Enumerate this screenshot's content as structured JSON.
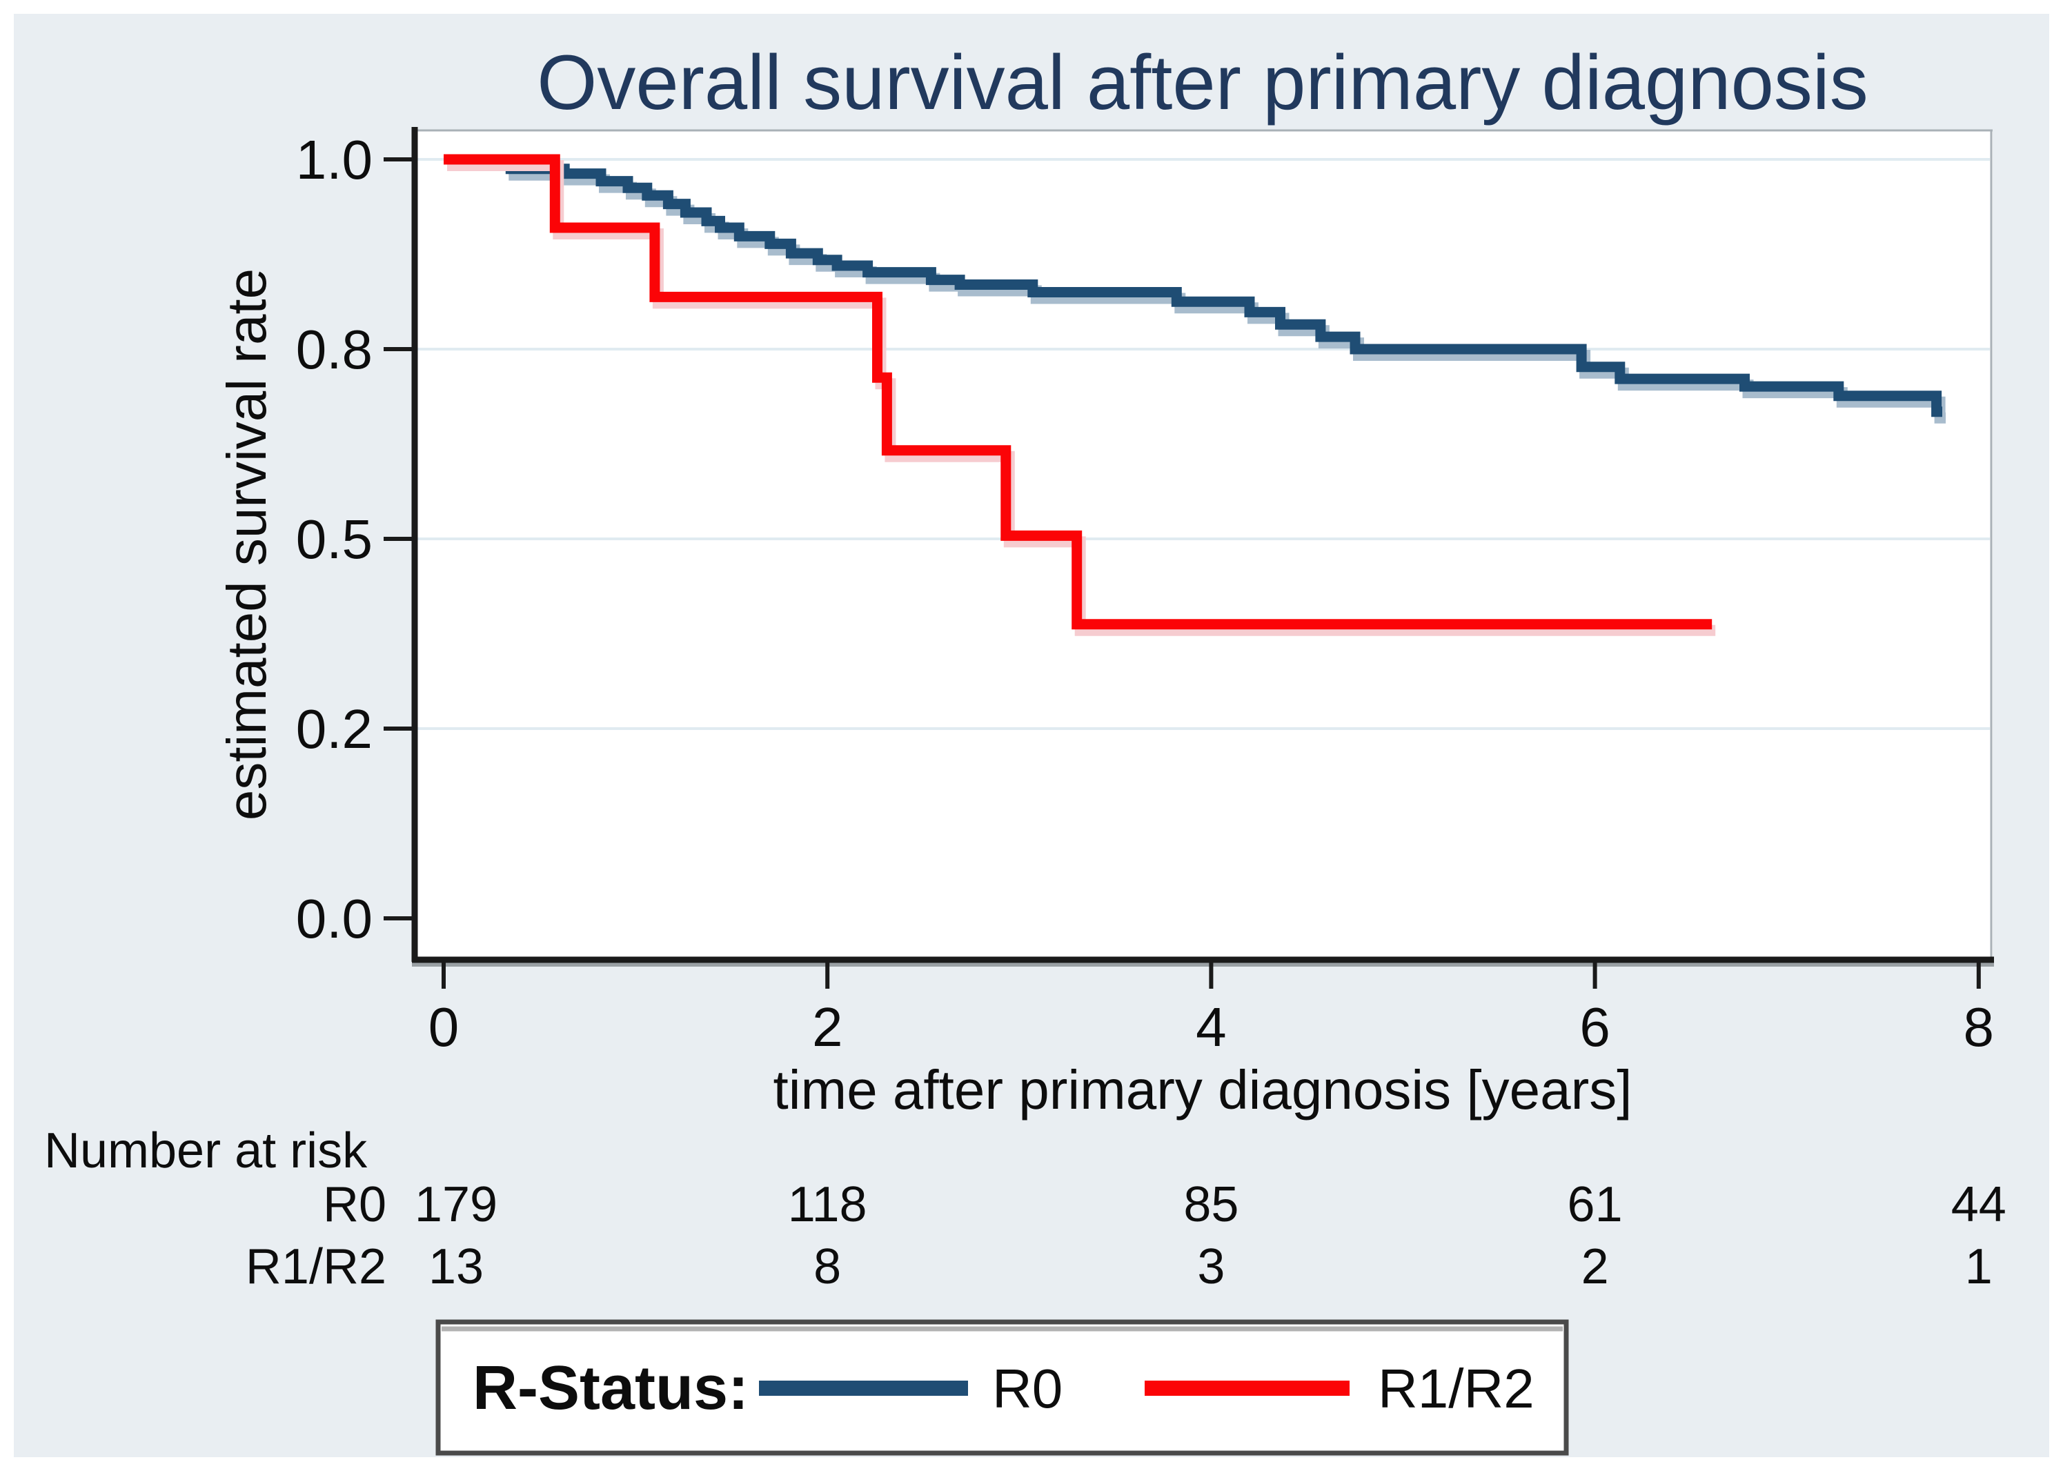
{
  "title": "Overall survival after primary diagnosis",
  "colors": {
    "panel_background": "#e9eef2",
    "plot_background": "#ffffff",
    "gridline": "#e0ebf1",
    "axis_line": "#1a1a1a",
    "plot_border": "#a9b1b7",
    "title_text": "#21395d",
    "r0_line": "#1f4d74",
    "r0_halo": "#a8bccd",
    "r1r2_line": "#fb0407",
    "r1r2_halo": "#f6ccd0",
    "legend_border": "#4a4a4a"
  },
  "chart_data": {
    "type": "line",
    "subtype": "kaplan-meier-step-curve",
    "title": "Overall survival after primary diagnosis",
    "xlabel": "time after primary diagnosis [years]",
    "ylabel": "estimated survival rate",
    "xlim": [
      0,
      8
    ],
    "x_ticks": [
      0,
      2,
      4,
      6,
      8
    ],
    "x_tick_labels": [
      "0",
      "2",
      "4",
      "6",
      "8"
    ],
    "y_tick_labels": [
      "1.0",
      "0.8",
      "0.5",
      "0.2",
      "0.0"
    ],
    "y_tick_values": [
      1.0,
      0.8,
      0.5,
      0.2,
      0.0
    ],
    "y_ticks_equally_spaced": true,
    "grid": "horizontal light gridlines at labeled y ticks (except 0.0)",
    "legend": {
      "title": "R-Status:",
      "position": "bottom-center boxed",
      "entries": [
        {
          "label": "R0",
          "color": "#1f4d74"
        },
        {
          "label": "R1/R2",
          "color": "#fb0407"
        }
      ]
    },
    "series": [
      {
        "name": "R0",
        "color": "#1f4d74",
        "steps": [
          [
            0,
            1.0
          ],
          [
            0.35,
            0.99
          ],
          [
            0.63,
            0.985
          ],
          [
            0.82,
            0.977
          ],
          [
            0.96,
            0.97
          ],
          [
            1.06,
            0.962
          ],
          [
            1.17,
            0.953
          ],
          [
            1.26,
            0.944
          ],
          [
            1.37,
            0.935
          ],
          [
            1.44,
            0.928
          ],
          [
            1.54,
            0.919
          ],
          [
            1.7,
            0.911
          ],
          [
            1.81,
            0.901
          ],
          [
            1.95,
            0.894
          ],
          [
            2.05,
            0.888
          ],
          [
            2.21,
            0.881
          ],
          [
            2.54,
            0.873
          ],
          [
            2.69,
            0.868
          ],
          [
            3.07,
            0.86
          ],
          [
            3.82,
            0.85
          ],
          [
            4.2,
            0.839
          ],
          [
            4.36,
            0.826
          ],
          [
            4.57,
            0.813
          ],
          [
            4.75,
            0.8
          ],
          [
            5.93,
            0.772
          ],
          [
            6.13,
            0.753
          ],
          [
            6.78,
            0.741
          ],
          [
            7.27,
            0.726
          ],
          [
            7.78,
            0.701
          ]
        ],
        "end_time": 7.81
      },
      {
        "name": "R1/R2",
        "color": "#fb0407",
        "steps": [
          [
            0,
            1.0
          ],
          [
            0.58,
            0.928
          ],
          [
            1.1,
            0.855
          ],
          [
            2.26,
            0.755
          ],
          [
            2.31,
            0.64
          ],
          [
            2.93,
            0.505
          ],
          [
            3.3,
            0.365
          ]
        ],
        "end_time": 6.61
      }
    ],
    "number_at_risk": {
      "heading": "Number at risk",
      "times": [
        0,
        2,
        4,
        6,
        8
      ],
      "rows": [
        {
          "label": "R0",
          "counts": [
            "179",
            "118",
            "85",
            "61",
            "44"
          ]
        },
        {
          "label": "R1/R2",
          "counts": [
            "13",
            "8",
            "3",
            "2",
            "1"
          ]
        }
      ]
    }
  }
}
